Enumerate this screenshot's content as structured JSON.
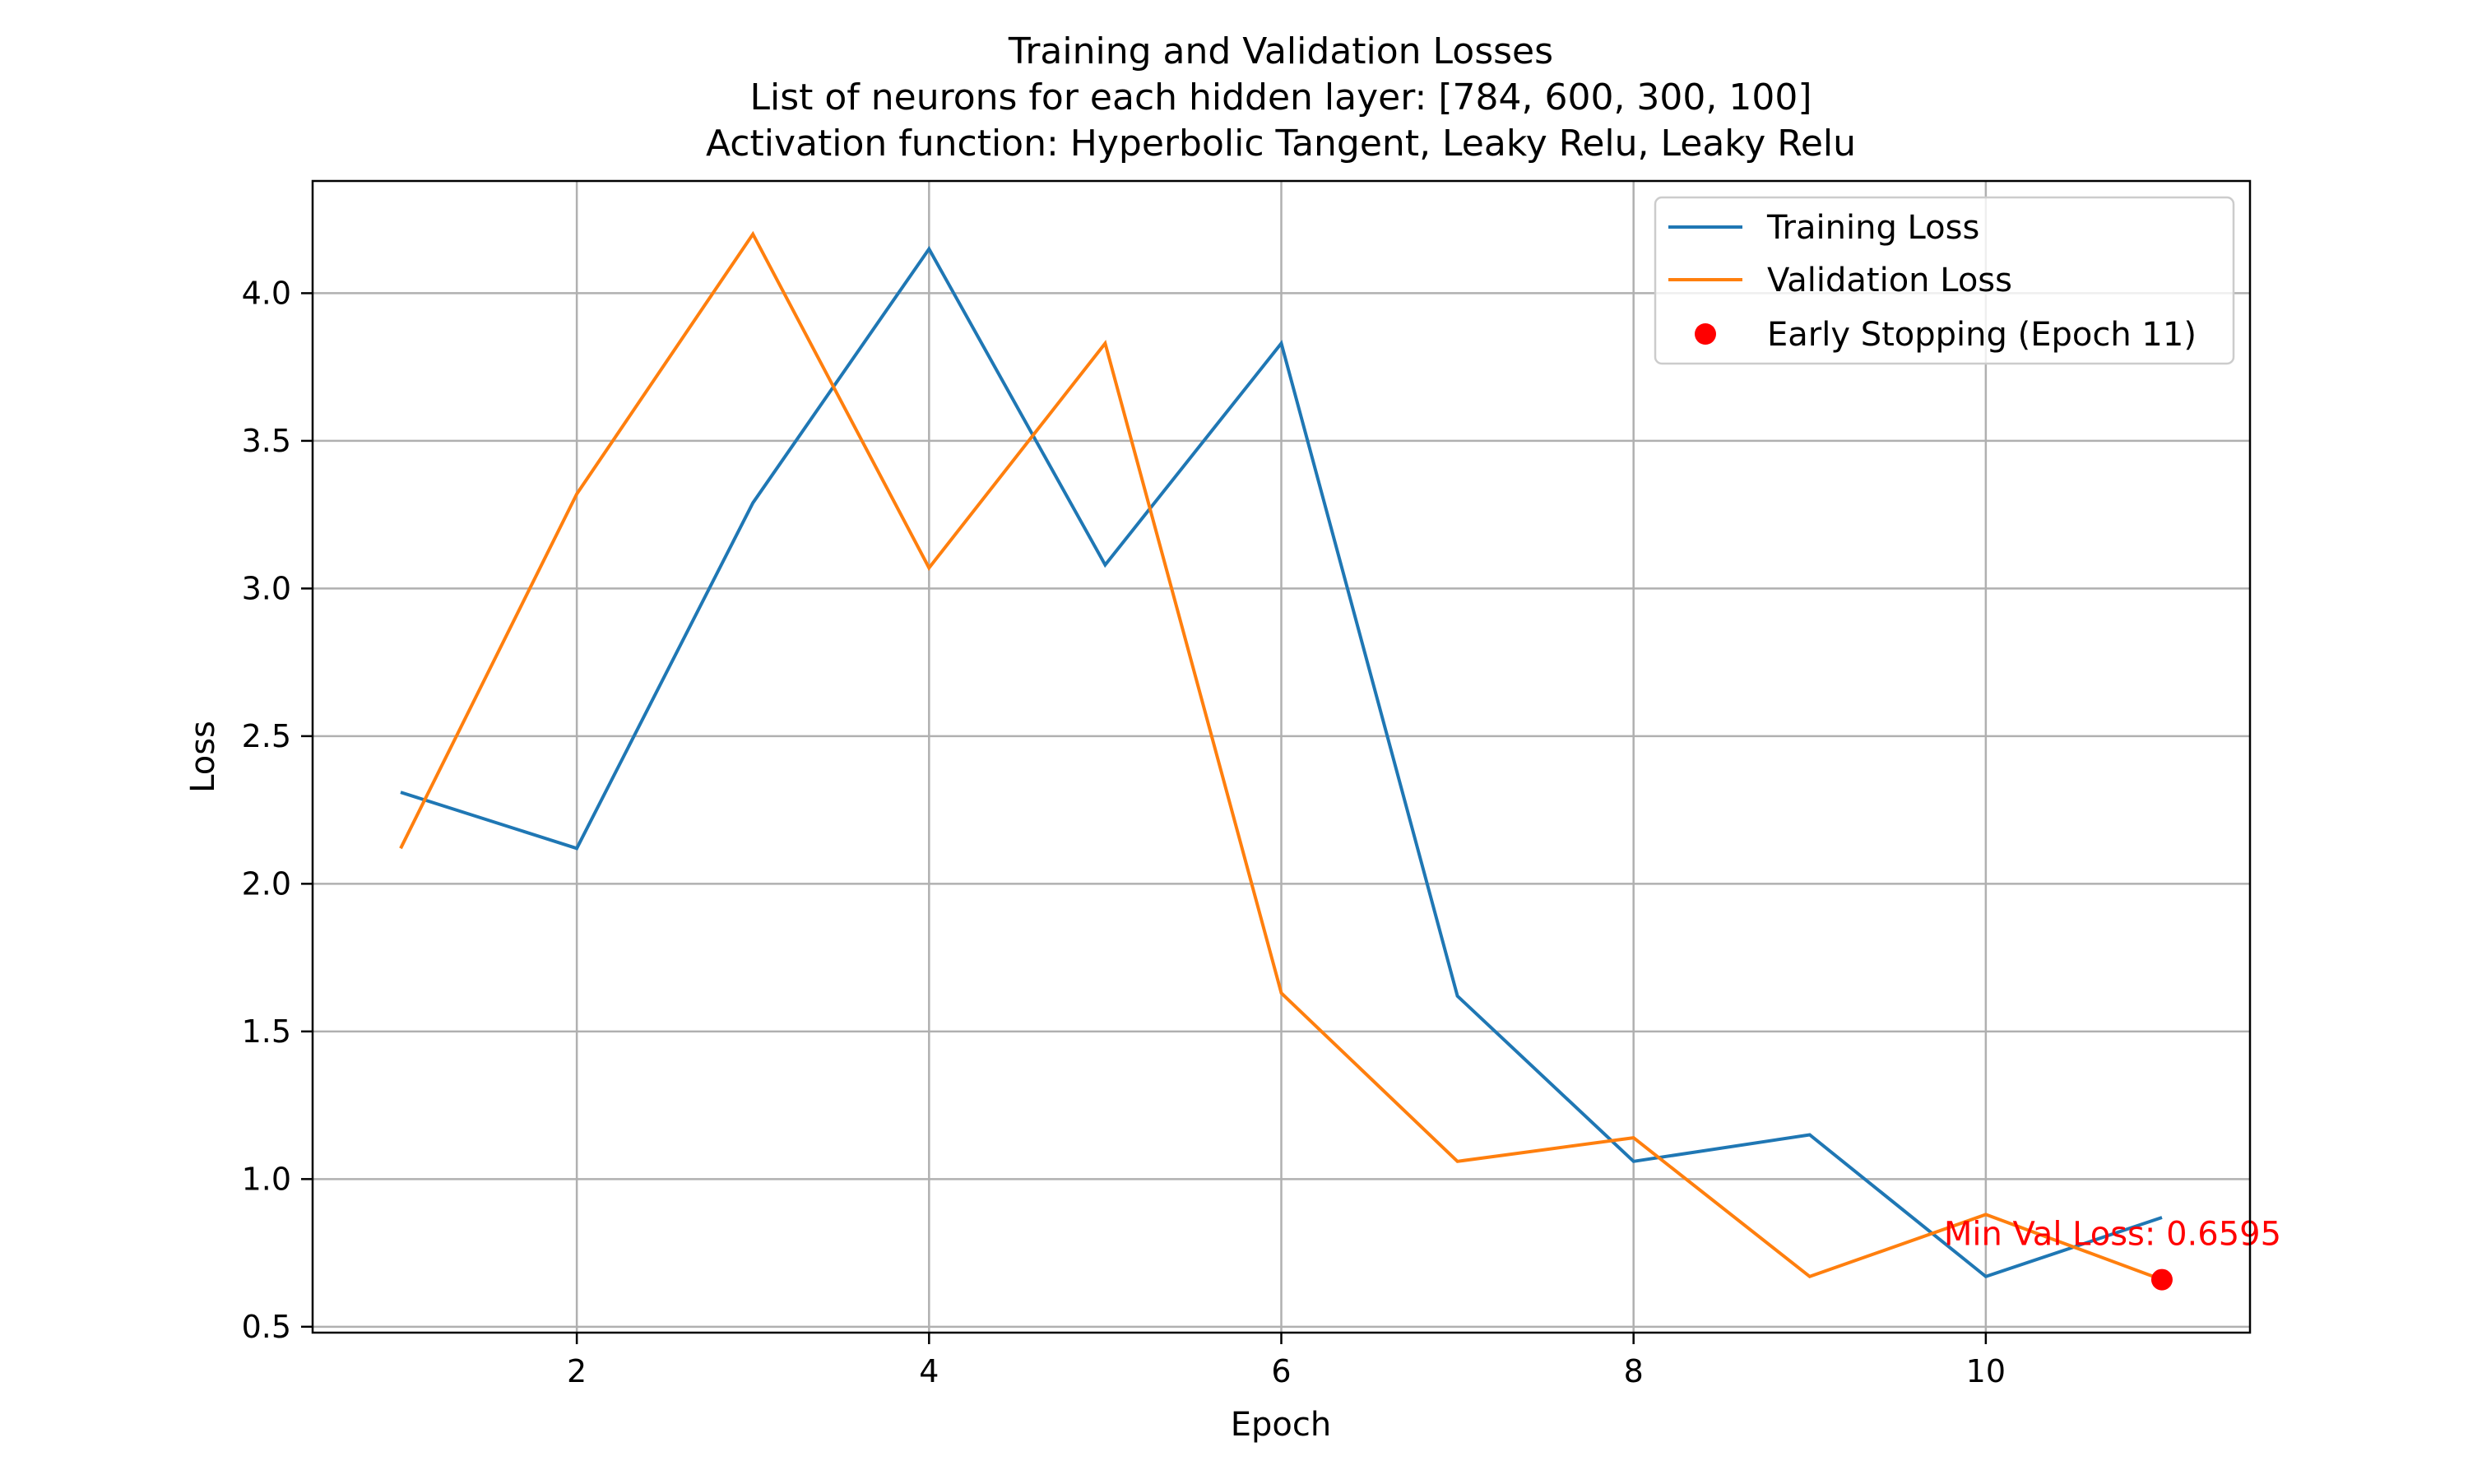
{
  "chart_data": {
    "type": "line",
    "title_lines": [
      "Training and Validation Losses",
      "List of neurons for each hidden layer: [784, 600, 300, 100]",
      "Activation function: Hyperbolic Tangent, Leaky Relu, Leaky Relu"
    ],
    "xlabel": "Epoch",
    "ylabel": "Loss",
    "xlim": [
      0.5,
      11.5
    ],
    "ylim": [
      0.48,
      4.38
    ],
    "xticks": [
      2,
      4,
      6,
      8,
      10
    ],
    "yticks": [
      0.5,
      1.0,
      1.5,
      2.0,
      2.5,
      3.0,
      3.5,
      4.0
    ],
    "ytick_labels": [
      "0.5",
      "1.0",
      "1.5",
      "2.0",
      "2.5",
      "3.0",
      "3.5",
      "4.0"
    ],
    "grid": true,
    "legend_position": "top-right",
    "x": [
      1,
      2,
      3,
      4,
      5,
      6,
      7,
      8,
      9,
      10,
      11
    ],
    "series": [
      {
        "name": "Training Loss",
        "color": "#1f77b4",
        "values": [
          2.31,
          2.12,
          3.29,
          4.15,
          3.08,
          3.83,
          1.62,
          1.06,
          1.15,
          0.67,
          0.87
        ]
      },
      {
        "name": "Validation Loss",
        "color": "#ff7f0e",
        "values": [
          2.12,
          3.32,
          4.2,
          3.07,
          3.83,
          1.63,
          1.06,
          1.14,
          0.67,
          0.88,
          0.6595
        ]
      }
    ],
    "marker": {
      "name": "Early Stopping (Epoch 11)",
      "color": "#ff0000",
      "x": 11,
      "y": 0.6595
    },
    "annotation": {
      "text": "Min Val Loss: 0.6595",
      "color": "#ff0000"
    }
  }
}
